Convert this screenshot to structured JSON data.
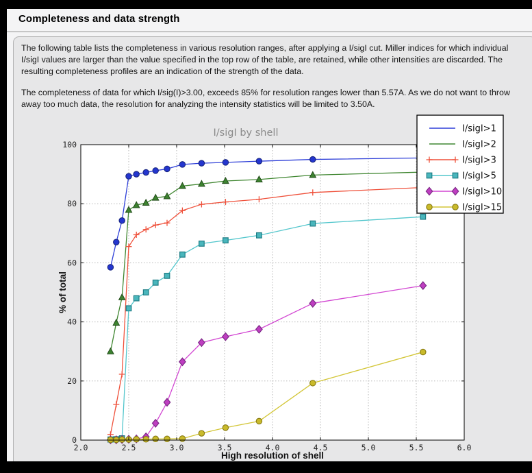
{
  "window": {
    "title": "Completeness and data strength"
  },
  "body": {
    "paragraph1": "The following table lists the completeness in various resolution ranges, after applying a I/sigI cut. Miller indices for which individual I/sigI values are larger than the value specified in the top row of the table, are retained, while other intensities are discarded. The resulting completeness profiles are an indication of the strength of the data.",
    "paragraph2": "The completeness of data for which I/sig(I)>3.00, exceeds 85% for resolution ranges lower than 5.57A. As we do not want to throw away too much data, the resolution for analyzing the intensity statistics will be limited to 3.50A."
  },
  "chart_data": {
    "type": "line",
    "title": "I/sigI by shell",
    "xlabel": "High resolution of shell",
    "ylabel": "% of total",
    "xlim": [
      2.0,
      6.0
    ],
    "ylim": [
      0,
      100
    ],
    "x_ticks": [
      2.0,
      2.5,
      3.0,
      3.5,
      4.0,
      4.5,
      5.0,
      5.5,
      6.0
    ],
    "y_ticks": [
      0,
      20,
      40,
      60,
      80,
      100
    ],
    "grid": true,
    "grid_style": "dotted",
    "legend_position": "upper right",
    "plot_bg": "#ffffff",
    "figure_bg": "#e7e7e8",
    "x": [
      2.31,
      2.37,
      2.43,
      2.5,
      2.58,
      2.68,
      2.78,
      2.9,
      3.06,
      3.26,
      3.51,
      3.86,
      4.42,
      5.57
    ],
    "series": [
      {
        "name": "I/sigI>1",
        "color": "#2e3fd8",
        "marker": "circle",
        "marker_fill": "#2436cf",
        "marker_edge": "#18257f",
        "values": [
          58.5,
          67.0,
          74.3,
          89.3,
          90.0,
          90.6,
          91.2,
          91.8,
          93.3,
          93.7,
          94.0,
          94.4,
          95.0,
          95.5
        ]
      },
      {
        "name": "I/sigI>2",
        "color": "#3f8630",
        "marker": "triangle",
        "marker_fill": "#3d8330",
        "marker_edge": "#234d1b",
        "values": [
          30.0,
          39.7,
          48.3,
          77.9,
          79.5,
          80.3,
          82.0,
          82.5,
          86.0,
          86.7,
          87.7,
          88.2,
          89.7,
          90.7
        ]
      },
      {
        "name": "I/sigI>3",
        "color": "#ef503a",
        "marker": "plus",
        "marker_fill": "none",
        "marker_edge": "#ef503a",
        "values": [
          1.9,
          12.1,
          22.3,
          65.5,
          69.5,
          71.3,
          72.8,
          73.5,
          77.7,
          79.8,
          80.6,
          81.5,
          83.8,
          85.5
        ]
      },
      {
        "name": "I/sigI>5",
        "color": "#52c6cc",
        "marker": "square",
        "marker_fill": "#49b6bc",
        "marker_edge": "#1f7d85",
        "values": [
          0.2,
          0.3,
          0.6,
          44.6,
          48.0,
          50.0,
          53.3,
          55.6,
          62.8,
          66.5,
          67.6,
          69.3,
          73.3,
          75.6
        ]
      },
      {
        "name": "I/sigI>10",
        "color": "#d246d2",
        "marker": "diamond",
        "marker_fill": "#bf3ec1",
        "marker_edge": "#7c2a86",
        "values": [
          0.1,
          0.1,
          0.2,
          0.3,
          0.4,
          1.1,
          5.7,
          12.8,
          26.5,
          33.0,
          35.0,
          37.5,
          46.3,
          52.3
        ]
      },
      {
        "name": "I/sigI>15",
        "color": "#d3c637",
        "marker": "circle",
        "marker_fill": "#c9ba2b",
        "marker_edge": "#877a12",
        "values": [
          0.1,
          0.1,
          0.2,
          0.2,
          0.3,
          0.3,
          0.4,
          0.4,
          0.5,
          2.3,
          4.2,
          6.4,
          19.3,
          29.8
        ]
      }
    ]
  }
}
